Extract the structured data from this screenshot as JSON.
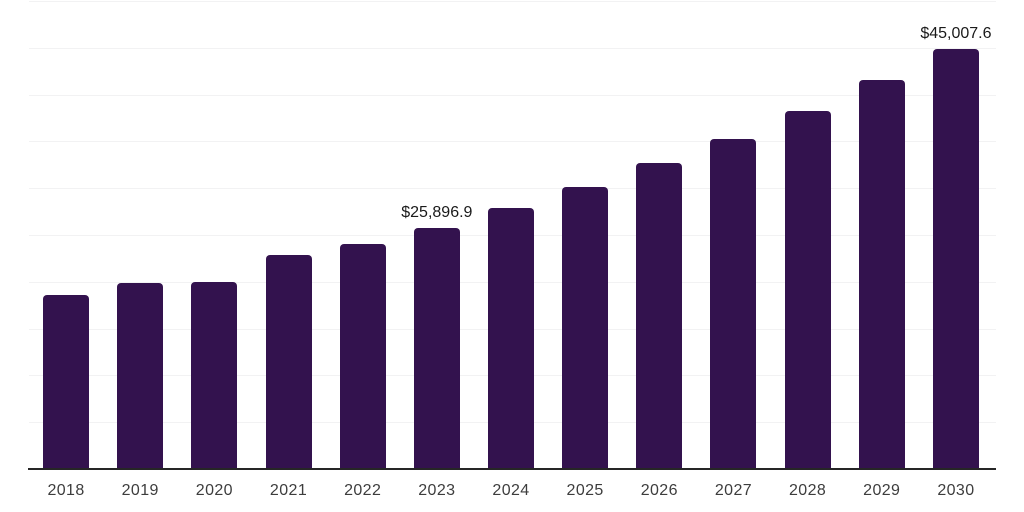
{
  "chart_data": {
    "type": "bar",
    "categories": [
      "2018",
      "2019",
      "2020",
      "2021",
      "2022",
      "2023",
      "2024",
      "2025",
      "2026",
      "2027",
      "2028",
      "2029",
      "2030"
    ],
    "values": [
      18700,
      20000,
      20100,
      23000,
      24100,
      25896.9,
      28000,
      30200,
      32800,
      35400,
      38400,
      41700,
      45007.6
    ],
    "annotations": [
      {
        "category": "2023",
        "text": "$25,896.9"
      },
      {
        "category": "2030",
        "text": "$45,007.6"
      }
    ],
    "ylim": [
      0,
      50000
    ],
    "gridline_interval": 5000,
    "grid": "horizontal",
    "legend": "none",
    "colors": {
      "bar": "#33124E",
      "grid": "#F2F2F3",
      "axis": "#262626",
      "annotation_text": "#1A1A1A",
      "tick_text": "#3D3D3D",
      "background": "#FFFFFF"
    }
  }
}
